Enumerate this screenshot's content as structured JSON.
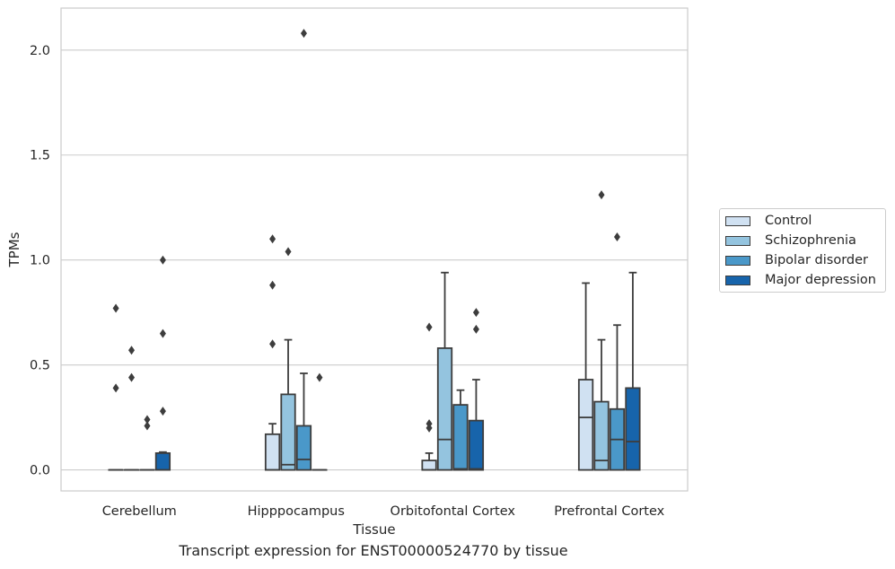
{
  "chart_data": {
    "type": "boxplot",
    "title": "",
    "caption": "Transcript expression for ENST00000524770 by tissue",
    "xlabel": "Tissue",
    "ylabel": "TPMs",
    "ylim": [
      -0.1,
      2.2
    ],
    "yticks": [
      0.0,
      0.5,
      1.0,
      1.5,
      2.0
    ],
    "ytick_labels": [
      "0.0",
      "0.5",
      "1.0",
      "1.5",
      "2.0"
    ],
    "grid": "horizontal",
    "legend_position": "right",
    "categories": [
      "Cerebellum",
      "Hipppocampus",
      "Orbitofontal Cortex",
      "Prefrontal Cortex"
    ],
    "series": [
      {
        "name": "Control",
        "color": "#d0e1f2",
        "boxes": [
          {
            "q1": 0,
            "median": 0,
            "q3": 0,
            "whisker_low": 0,
            "whisker_high": 0,
            "outliers": [
              0.39,
              0.77
            ]
          },
          {
            "q1": 0,
            "median": 0,
            "q3": 0.17,
            "whisker_low": 0,
            "whisker_high": 0.22,
            "outliers": [
              0.6,
              0.88,
              1.1
            ]
          },
          {
            "q1": 0,
            "median": 0,
            "q3": 0.045,
            "whisker_low": 0,
            "whisker_high": 0.08,
            "outliers": [
              0.2,
              0.22,
              0.68
            ]
          },
          {
            "q1": 0,
            "median": 0.25,
            "q3": 0.43,
            "whisker_low": 0,
            "whisker_high": 0.89,
            "outliers": []
          }
        ]
      },
      {
        "name": "Schizophrenia",
        "color": "#94c4df",
        "boxes": [
          {
            "q1": 0,
            "median": 0,
            "q3": 0,
            "whisker_low": 0,
            "whisker_high": 0,
            "outliers": [
              0.44,
              0.57
            ]
          },
          {
            "q1": 0,
            "median": 0.025,
            "q3": 0.36,
            "whisker_low": 0,
            "whisker_high": 0.62,
            "outliers": [
              1.04
            ]
          },
          {
            "q1": 0,
            "median": 0.145,
            "q3": 0.58,
            "whisker_low": 0,
            "whisker_high": 0.94,
            "outliers": []
          },
          {
            "q1": 0,
            "median": 0.045,
            "q3": 0.325,
            "whisker_low": 0,
            "whisker_high": 0.62,
            "outliers": [
              1.31
            ]
          }
        ]
      },
      {
        "name": "Bipolar disorder",
        "color": "#4a98c9",
        "boxes": [
          {
            "q1": 0,
            "median": 0,
            "q3": 0,
            "whisker_low": 0,
            "whisker_high": 0,
            "outliers": [
              0.21,
              0.24
            ]
          },
          {
            "q1": 0,
            "median": 0.05,
            "q3": 0.21,
            "whisker_low": 0,
            "whisker_high": 0.46,
            "outliers": [
              2.08
            ]
          },
          {
            "q1": 0,
            "median": 0.005,
            "q3": 0.31,
            "whisker_low": 0,
            "whisker_high": 0.38,
            "outliers": []
          },
          {
            "q1": 0,
            "median": 0.145,
            "q3": 0.29,
            "whisker_low": 0,
            "whisker_high": 0.69,
            "outliers": [
              1.11
            ]
          }
        ]
      },
      {
        "name": "Major depression",
        "color": "#1764ab",
        "boxes": [
          {
            "q1": 0,
            "median": 0,
            "q3": 0.08,
            "whisker_low": 0,
            "whisker_high": 0.085,
            "outliers": [
              0.28,
              0.65,
              1.0
            ]
          },
          {
            "q1": 0,
            "median": 0,
            "q3": 0,
            "whisker_low": 0,
            "whisker_high": 0,
            "outliers": [
              0.44
            ]
          },
          {
            "q1": 0,
            "median": 0.005,
            "q3": 0.235,
            "whisker_low": 0,
            "whisker_high": 0.43,
            "outliers": [
              0.67,
              0.75
            ]
          },
          {
            "q1": 0,
            "median": 0.135,
            "q3": 0.39,
            "whisker_low": 0,
            "whisker_high": 0.94,
            "outliers": []
          }
        ]
      }
    ]
  }
}
